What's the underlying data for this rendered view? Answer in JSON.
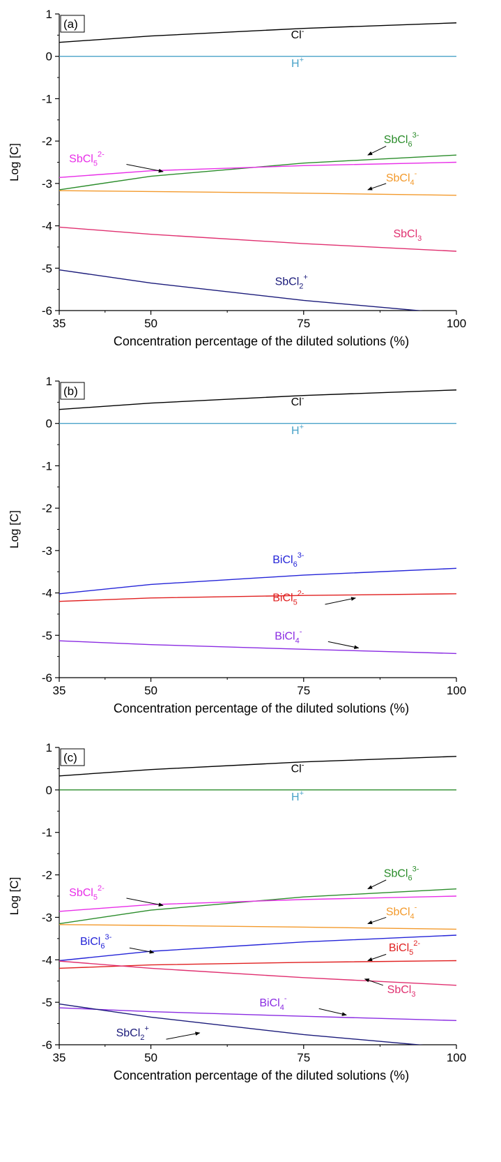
{
  "chart_data": [
    {
      "type": "line",
      "panel_label": "(a)",
      "xlabel": "Concentration percentage of the diluted solutions (%)",
      "ylabel": "Log [C]",
      "xlim": [
        35,
        100
      ],
      "ylim": [
        -6,
        1
      ],
      "xticks": [
        35,
        50,
        75,
        100
      ],
      "yticks": [
        1,
        0,
        -1,
        -2,
        -3,
        -4,
        -5,
        -6
      ],
      "grid": false,
      "x": [
        35,
        50,
        75,
        100
      ],
      "series": [
        {
          "name": "Cl",
          "sup": "-",
          "color": "#000000",
          "values": [
            0.33,
            0.48,
            0.66,
            0.79
          ],
          "label": {
            "x": 74,
            "y": 0.42
          }
        },
        {
          "name": "H",
          "sup": "+",
          "color": "#4aa3c9",
          "values": [
            0.0,
            0.0,
            0.0,
            0.0
          ],
          "label": {
            "x": 74,
            "y": -0.25
          }
        },
        {
          "name": "SbCl",
          "sub": "6",
          "sup": "3-",
          "color": "#2a8c2a",
          "values": [
            -3.15,
            -2.83,
            -2.52,
            -2.33
          ],
          "label": {
            "x": 91,
            "y": -2.05
          },
          "arrow": {
            "from": [
              88.5,
              -2.12
            ],
            "to": [
              85.5,
              -2.33
            ]
          }
        },
        {
          "name": "SbCl",
          "sub": "5",
          "sup": "2-",
          "color": "#e82ee8",
          "values": [
            -2.86,
            -2.7,
            -2.58,
            -2.5
          ],
          "label": {
            "x": 39.5,
            "y": -2.5
          },
          "arrow": {
            "from": [
              46,
              -2.55
            ],
            "to": [
              52,
              -2.72
            ]
          }
        },
        {
          "name": "SbCl",
          "sub": "4",
          "sup": "-",
          "color": "#f39a2c",
          "values": [
            -3.17,
            -3.19,
            -3.23,
            -3.28
          ],
          "label": {
            "x": 91,
            "y": -2.95
          },
          "arrow": {
            "from": [
              88.5,
              -3.0
            ],
            "to": [
              85.5,
              -3.15
            ]
          }
        },
        {
          "name": "SbCl",
          "sub": "3",
          "color": "#e03070",
          "values": [
            -4.03,
            -4.2,
            -4.42,
            -4.6
          ],
          "label": {
            "x": 92,
            "y": -4.27
          }
        },
        {
          "name": "SbCl",
          "sub": "2",
          "sup": "+",
          "color": "#1a1a7a",
          "values": [
            -5.04,
            -5.35,
            -5.76,
            -6.08
          ],
          "label": {
            "x": 73,
            "y": -5.4
          }
        }
      ]
    },
    {
      "type": "line",
      "panel_label": "(b)",
      "xlabel": "Concentration percentage of the diluted solutions (%)",
      "ylabel": "Log [C]",
      "xlim": [
        35,
        100
      ],
      "ylim": [
        -6,
        1
      ],
      "xticks": [
        35,
        50,
        75,
        100
      ],
      "yticks": [
        1,
        0,
        -1,
        -2,
        -3,
        -4,
        -5,
        -6
      ],
      "grid": false,
      "x": [
        35,
        50,
        75,
        100
      ],
      "series": [
        {
          "name": "Cl",
          "sup": "-",
          "color": "#000000",
          "values": [
            0.33,
            0.48,
            0.66,
            0.79
          ],
          "label": {
            "x": 74,
            "y": 0.42
          }
        },
        {
          "name": "H",
          "sup": "+",
          "color": "#4aa3c9",
          "values": [
            0.0,
            0.0,
            0.0,
            0.0
          ],
          "label": {
            "x": 74,
            "y": -0.25
          }
        },
        {
          "name": "BiCl",
          "sub": "6",
          "sup": "3-",
          "color": "#2424d8",
          "values": [
            -4.02,
            -3.8,
            -3.58,
            -3.42
          ],
          "label": {
            "x": 72.5,
            "y": -3.3
          }
        },
        {
          "name": "BiCl",
          "sub": "5",
          "sup": "2-",
          "color": "#e02020",
          "values": [
            -4.2,
            -4.12,
            -4.06,
            -4.02
          ],
          "label": {
            "x": 72.5,
            "y": -4.2
          },
          "arrow": {
            "from": [
              78.5,
              -4.27
            ],
            "to": [
              83.5,
              -4.12
            ]
          }
        },
        {
          "name": "BiCl",
          "sub": "4",
          "sup": "-",
          "color": "#8a2be2",
          "values": [
            -5.13,
            -5.22,
            -5.33,
            -5.43
          ],
          "label": {
            "x": 72.5,
            "y": -5.1
          },
          "arrow": {
            "from": [
              79,
              -5.15
            ],
            "to": [
              84,
              -5.3
            ]
          }
        }
      ]
    },
    {
      "type": "line",
      "panel_label": "(c)",
      "xlabel": "Concentration percentage of the diluted solutions (%)",
      "ylabel": "Log [C]",
      "xlim": [
        35,
        100
      ],
      "ylim": [
        -6,
        1
      ],
      "xticks": [
        35,
        50,
        75,
        100
      ],
      "yticks": [
        1,
        0,
        -1,
        -2,
        -3,
        -4,
        -5,
        -6
      ],
      "grid": false,
      "x": [
        35,
        50,
        75,
        100
      ],
      "series": [
        {
          "name": "Cl",
          "sup": "-",
          "color": "#000000",
          "values": [
            0.33,
            0.48,
            0.66,
            0.79
          ],
          "label": {
            "x": 74,
            "y": 0.42
          }
        },
        {
          "name": "H",
          "sup": "+",
          "color": "#4aa3c9",
          "values": [
            null,
            null,
            null,
            null
          ],
          "label": {
            "x": 74,
            "y": -0.25
          }
        },
        {
          "name": "",
          "color": "#2a8c2a",
          "values": [
            0.0,
            0.0,
            0.0,
            0.0
          ]
        },
        {
          "name": "SbCl",
          "sub": "6",
          "sup": "3-",
          "color": "#2a8c2a",
          "values": [
            -3.15,
            -2.83,
            -2.52,
            -2.33
          ],
          "label": {
            "x": 91,
            "y": -2.05
          },
          "arrow": {
            "from": [
              88.5,
              -2.12
            ],
            "to": [
              85.5,
              -2.33
            ]
          }
        },
        {
          "name": "SbCl",
          "sub": "5",
          "sup": "2-",
          "color": "#e82ee8",
          "values": [
            -2.86,
            -2.7,
            -2.58,
            -2.5
          ],
          "label": {
            "x": 39.5,
            "y": -2.5
          },
          "arrow": {
            "from": [
              46,
              -2.55
            ],
            "to": [
              52,
              -2.72
            ]
          }
        },
        {
          "name": "SbCl",
          "sub": "4",
          "sup": "-",
          "color": "#f39a2c",
          "values": [
            -3.17,
            -3.19,
            -3.23,
            -3.28
          ],
          "label": {
            "x": 91,
            "y": -2.95
          },
          "arrow": {
            "from": [
              88.5,
              -3.0
            ],
            "to": [
              85.5,
              -3.15
            ]
          }
        },
        {
          "name": "BiCl",
          "sub": "6",
          "sup": "3-",
          "color": "#2424d8",
          "values": [
            -4.02,
            -3.8,
            -3.58,
            -3.42
          ],
          "label": {
            "x": 41,
            "y": -3.65
          },
          "arrow": {
            "from": [
              46.5,
              -3.72
            ],
            "to": [
              50.5,
              -3.83
            ]
          }
        },
        {
          "name": "BiCl",
          "sub": "5",
          "sup": "2-",
          "color": "#e02020",
          "values": [
            -4.2,
            -4.12,
            -4.06,
            -4.02
          ],
          "label": {
            "x": 91.5,
            "y": -3.8
          },
          "arrow": {
            "from": [
              88.5,
              -3.87
            ],
            "to": [
              85.5,
              -4.02
            ]
          }
        },
        {
          "name": "SbCl",
          "sub": "3",
          "color": "#e03070",
          "values": [
            -4.03,
            -4.2,
            -4.42,
            -4.6
          ],
          "label": {
            "x": 91,
            "y": -4.78
          },
          "arrow": {
            "from": [
              88,
              -4.6
            ],
            "to": [
              85,
              -4.45
            ]
          }
        },
        {
          "name": "BiCl",
          "sub": "4",
          "sup": "-",
          "color": "#8a2be2",
          "values": [
            -5.13,
            -5.22,
            -5.33,
            -5.43
          ],
          "label": {
            "x": 70,
            "y": -5.1
          },
          "arrow": {
            "from": [
              77.5,
              -5.15
            ],
            "to": [
              82,
              -5.3
            ]
          }
        },
        {
          "name": "SbCl",
          "sub": "2",
          "sup": "+",
          "color": "#1a1a7a",
          "values": [
            -5.04,
            -5.35,
            -5.76,
            -6.08
          ],
          "label": {
            "x": 47,
            "y": -5.8
          },
          "arrow": {
            "from": [
              52.5,
              -5.87
            ],
            "to": [
              58,
              -5.72
            ]
          }
        }
      ]
    }
  ]
}
